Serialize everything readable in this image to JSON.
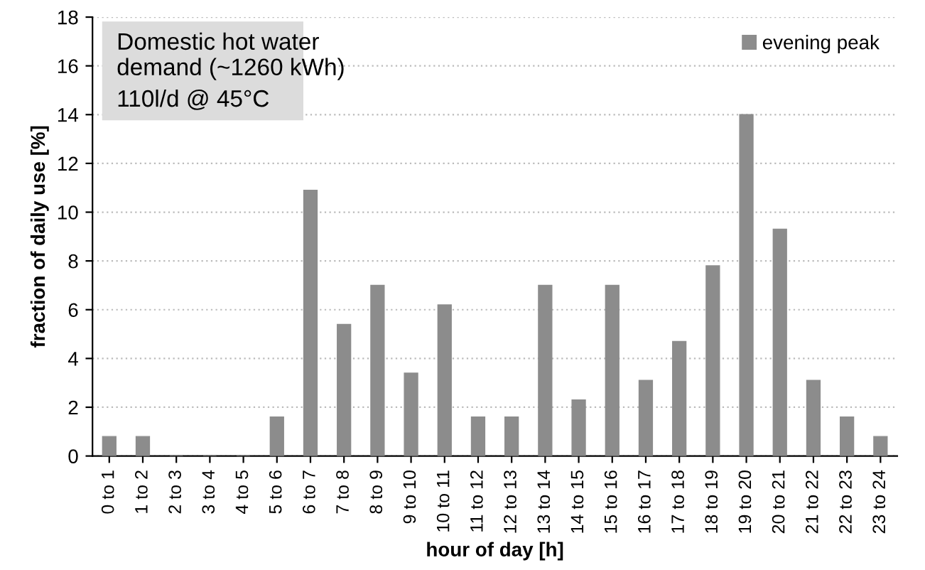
{
  "chart_data": {
    "type": "bar",
    "categories": [
      "0 to 1",
      "1 to 2",
      "2 to 3",
      "3 to 4",
      "4 to 5",
      "5 to 6",
      "6 to 7",
      "7 to 8",
      "8 to 9",
      "9 to 10",
      "10 to 11",
      "11 to 12",
      "12 to 13",
      "13 to 14",
      "14 to 15",
      "15 to 16",
      "16 to 17",
      "17 to 18",
      "18 to 19",
      "19 to 20",
      "20 to 21",
      "21 to 22",
      "22 to 23",
      "23 to 24"
    ],
    "series": [
      {
        "name": "evening peak",
        "color": "#8c8c8c",
        "values": [
          0.8,
          0.8,
          0,
          0,
          0,
          1.6,
          10.9,
          5.4,
          7.0,
          3.4,
          6.2,
          1.6,
          1.6,
          7.0,
          2.3,
          7.0,
          3.1,
          4.7,
          7.8,
          14.0,
          9.3,
          3.1,
          1.6,
          0.8
        ]
      }
    ],
    "xlabel": "hour of day [h]",
    "ylabel": "fraction of daily use [%]",
    "annotations": [
      "Domestic hot water demand (~1260 kWh)",
      "110l/d @ 45°C"
    ],
    "ylim": [
      0,
      18
    ],
    "yticks": [
      0,
      2,
      4,
      6,
      8,
      10,
      12,
      14,
      16,
      18
    ],
    "grid": "y",
    "legend": "top right"
  }
}
